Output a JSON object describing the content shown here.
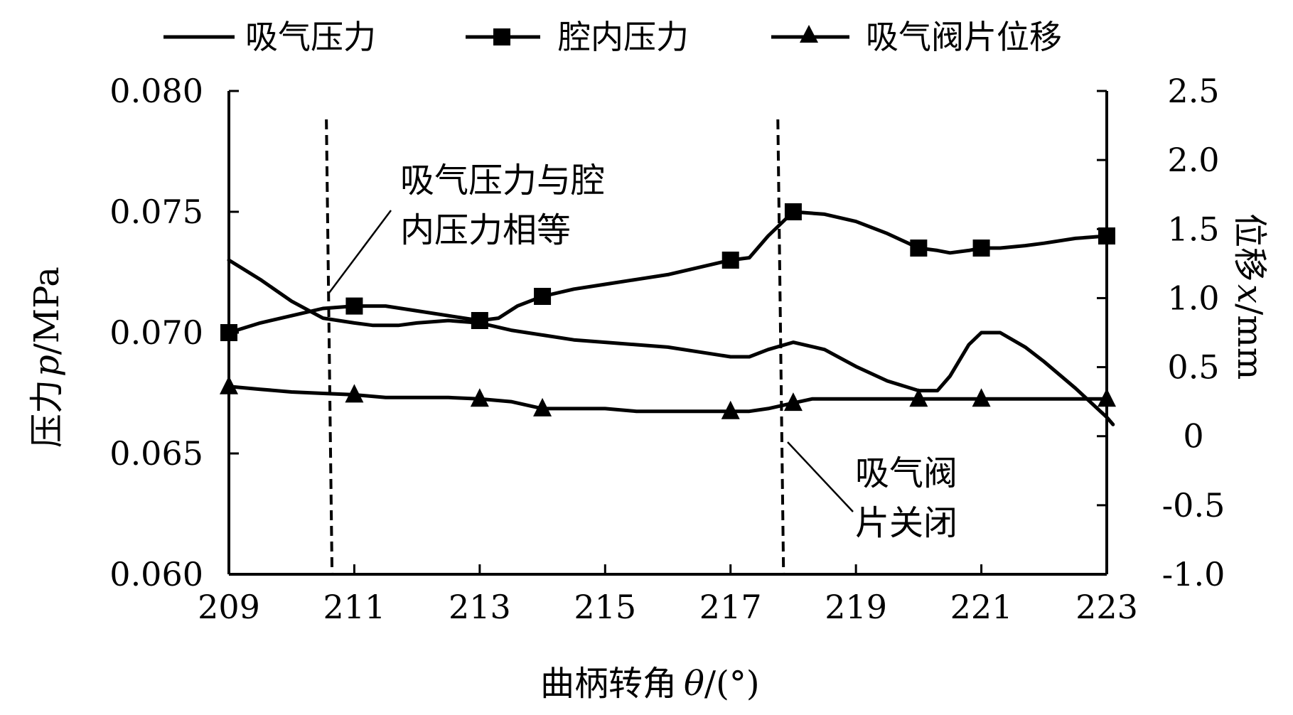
{
  "chart_data": {
    "type": "line",
    "xlabel": "曲柄转角",
    "xlabel_symbol": "θ",
    "xlabel_unit": "/(°)",
    "ylabel_left": "压力",
    "ylabel_left_symbol": "p",
    "ylabel_left_unit": "/MPa",
    "ylabel_right": "位移",
    "ylabel_right_symbol": "x",
    "ylabel_right_unit": "/mm",
    "xlim": [
      209,
      223
    ],
    "ylim_left": [
      0.06,
      0.08
    ],
    "ylim_right": [
      -1.0,
      2.5
    ],
    "x_ticks": [
      "209",
      "211",
      "213",
      "215",
      "217",
      "219",
      "221",
      "223"
    ],
    "y_left_ticks": [
      "0.060",
      "0.065",
      "0.070",
      "0.075",
      "0.080"
    ],
    "y_right_ticks": [
      "-1.0",
      "-0.5",
      "0",
      "0.5",
      "1.0",
      "1.5",
      "2.0",
      "2.5"
    ],
    "legend_position": "top",
    "series": [
      {
        "name": "吸气压力",
        "axis": "left",
        "marker": "none",
        "x": [
          209.0,
          209.5,
          210.0,
          210.5,
          211.0,
          211.3,
          211.7,
          212.0,
          212.5,
          213.0,
          213.5,
          214.0,
          214.5,
          215.0,
          215.5,
          216.0,
          216.5,
          217.0,
          217.3,
          217.6,
          218.0,
          218.5,
          219.0,
          219.5,
          220.0,
          220.3,
          220.5,
          220.8,
          221.0,
          221.3,
          221.7,
          222.0,
          222.5,
          223.0,
          223.1
        ],
        "y": [
          0.073,
          0.0722,
          0.0713,
          0.0706,
          0.0704,
          0.0703,
          0.0703,
          0.0704,
          0.0705,
          0.0704,
          0.0701,
          0.0699,
          0.0697,
          0.0696,
          0.0695,
          0.0694,
          0.0692,
          0.069,
          0.069,
          0.0693,
          0.0696,
          0.0693,
          0.0686,
          0.068,
          0.0676,
          0.0676,
          0.0682,
          0.0695,
          0.07,
          0.07,
          0.0694,
          0.0688,
          0.0677,
          0.0665,
          0.0662
        ]
      },
      {
        "name": "腔内压力",
        "axis": "left",
        "marker": "square",
        "x": [
          209.0,
          209.5,
          210.0,
          210.5,
          211.0,
          211.5,
          212.0,
          212.5,
          213.0,
          213.3,
          213.6,
          214.0,
          214.5,
          215.0,
          215.5,
          216.0,
          216.5,
          217.0,
          217.3,
          217.6,
          218.0,
          218.5,
          219.0,
          219.5,
          220.0,
          220.3,
          220.5,
          220.8,
          221.0,
          221.3,
          221.7,
          222.0,
          222.5,
          223.0
        ],
        "y": [
          0.07,
          0.0704,
          0.0707,
          0.071,
          0.0711,
          0.0711,
          0.0709,
          0.0707,
          0.0705,
          0.0706,
          0.0711,
          0.0715,
          0.0718,
          0.072,
          0.0722,
          0.0724,
          0.0727,
          0.073,
          0.0731,
          0.074,
          0.075,
          0.0749,
          0.0746,
          0.0741,
          0.0735,
          0.0734,
          0.0733,
          0.0734,
          0.0735,
          0.0735,
          0.0736,
          0.0737,
          0.0739,
          0.074
        ],
        "marker_x": [
          209.0,
          211.0,
          213.0,
          214.0,
          217.0,
          218.0,
          220.0,
          221.0,
          223.0
        ],
        "marker_y": [
          0.07,
          0.0711,
          0.0705,
          0.0715,
          0.073,
          0.075,
          0.0735,
          0.0735,
          0.074
        ]
      },
      {
        "name": "吸气阀片位移",
        "axis": "right",
        "marker": "triangle",
        "x": [
          209.0,
          209.5,
          210.0,
          210.5,
          211.0,
          211.5,
          212.0,
          212.5,
          213.0,
          213.5,
          214.0,
          214.5,
          215.0,
          215.5,
          216.0,
          216.5,
          217.0,
          217.3,
          217.6,
          218.0,
          218.3,
          218.6,
          219.0,
          219.5,
          220.0,
          220.5,
          221.0,
          221.5,
          222.0,
          222.5,
          223.0
        ],
        "y": [
          0.36,
          0.34,
          0.32,
          0.31,
          0.3,
          0.28,
          0.28,
          0.28,
          0.27,
          0.25,
          0.2,
          0.2,
          0.2,
          0.18,
          0.18,
          0.18,
          0.18,
          0.18,
          0.2,
          0.24,
          0.27,
          0.27,
          0.27,
          0.27,
          0.27,
          0.27,
          0.27,
          0.27,
          0.27,
          0.27,
          0.27
        ],
        "marker_x": [
          209.0,
          211.0,
          213.0,
          214.0,
          217.0,
          218.0,
          220.0,
          221.0,
          223.0
        ],
        "marker_y": [
          0.36,
          0.3,
          0.27,
          0.2,
          0.18,
          0.24,
          0.27,
          0.27,
          0.27
        ]
      }
    ],
    "vlines": [
      {
        "x": 210.6,
        "style": "dashed"
      },
      {
        "x": 217.8,
        "style": "dashed"
      }
    ],
    "annotations": [
      {
        "lines": [
          "吸气压力与腔",
          "内压力相等"
        ]
      },
      {
        "lines": [
          "吸气阀",
          "片关闭"
        ]
      }
    ]
  }
}
